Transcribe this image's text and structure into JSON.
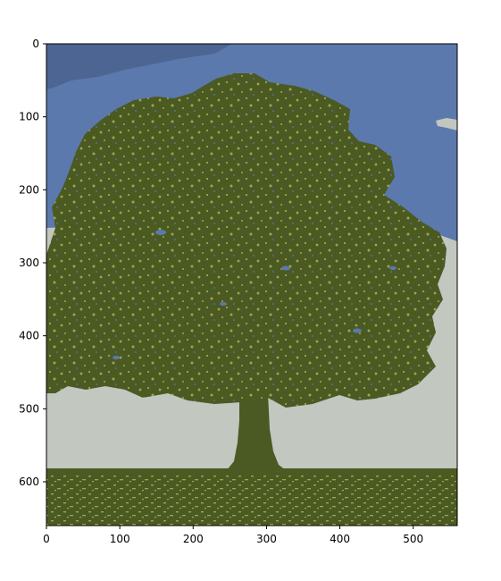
{
  "chart_data": {
    "type": "heatmap",
    "subtype": "image",
    "title": "",
    "xlabel": "",
    "ylabel": "",
    "xlim": [
      0,
      560
    ],
    "ylim": [
      660,
      0
    ],
    "x_ticks": [
      0,
      100,
      200,
      300,
      400,
      500
    ],
    "y_ticks": [
      0,
      100,
      200,
      300,
      400,
      500,
      600
    ],
    "x_tick_labels": [
      "0",
      "100",
      "200",
      "300",
      "400",
      "500"
    ],
    "y_tick_labels": [
      "0",
      "100",
      "200",
      "300",
      "400",
      "500",
      "600"
    ],
    "grid": false,
    "palette": {
      "sky": "#5b79ad",
      "sky_dark": "#4c6593",
      "haze": "#c2c7c0",
      "foliage": "#4b5a23",
      "foliage_light": "#9ba84a"
    }
  }
}
